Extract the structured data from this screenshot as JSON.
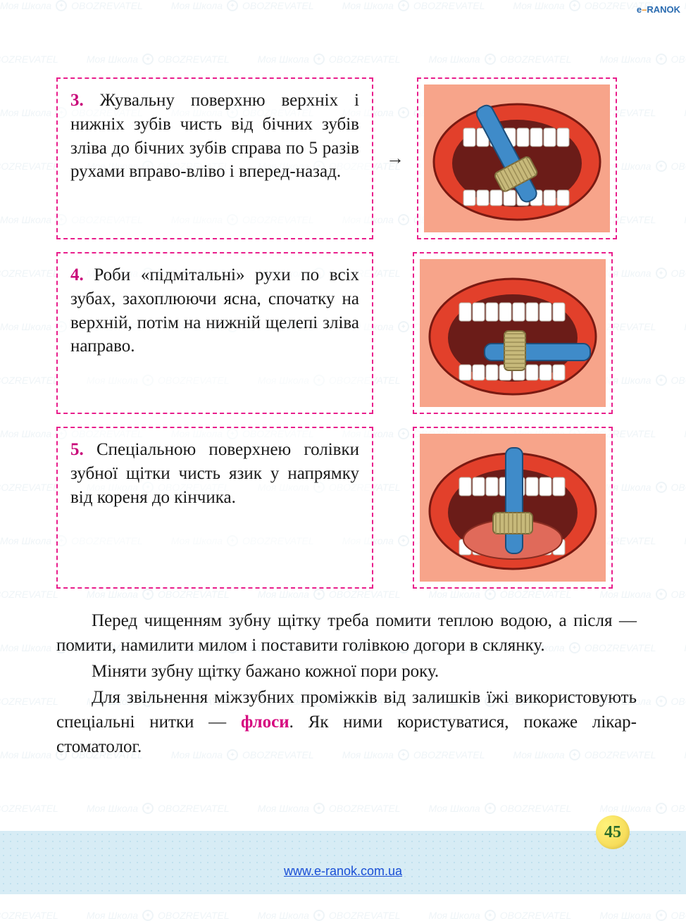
{
  "corner_logo": {
    "e": "e",
    "dash": "–",
    "brand": "RANOK"
  },
  "watermark": {
    "school": "Моя Школа",
    "obz": "OBOZREVATEL"
  },
  "steps": [
    {
      "num": "3.",
      "text": "Жувальну поверхню верхніх і нижніх зубів чисть від бічних зубів зліва до бічних зубів справа по 5 разів рухами вправо-вліво і вперед-назад.",
      "arrow": "→",
      "illus": {
        "skin": "#f7a48a",
        "lip": "#e2402b",
        "inner": "#6b1c18",
        "tooth": "#ffffff",
        "brush_handle": "#3f8bc9",
        "brush_head": "#c7b97a",
        "angle": -28
      }
    },
    {
      "num": "4.",
      "text": "Роби «підмітальні» рухи по всіх зубах, захоплюючи ясна, спочатку на верхній, потім на нижній щелепі зліва  направо.",
      "arrow": "",
      "illus": {
        "skin": "#f7a48a",
        "lip": "#e2402b",
        "inner": "#6b1c18",
        "tooth": "#ffffff",
        "brush_handle": "#3f8bc9",
        "brush_head": "#c7b97a",
        "angle": 90
      }
    },
    {
      "num": "5.",
      "text": "Спеціальною поверхнею голівки зубної щітки чисть язик у напрямку від кореня до кінчика.",
      "arrow": "",
      "illus": {
        "skin": "#f7a48a",
        "lip": "#e2402b",
        "inner": "#6b1c18",
        "tooth": "#ffffff",
        "brush_handle": "#3f8bc9",
        "brush_head": "#c7b97a",
        "tongue": "#e06a5a",
        "angle": 0
      }
    }
  ],
  "body": {
    "p1": "Перед чищенням зубну щітку треба помити теплою водою, а після — помити, намилити милом і поставити голівкою догори в склянку.",
    "p2": "Міняти зубну щітку бажано кожної пори року.",
    "p3_a": "Для звільнення міжзубних проміжків від залишків їжі використовують спеціальні нитки — ",
    "p3_kw": "флоси",
    "p3_b": ". Як ними користуватися, покаже лікар-стоматолог."
  },
  "page_number": "45",
  "footer_url": "www.e-ranok.com.ua"
}
